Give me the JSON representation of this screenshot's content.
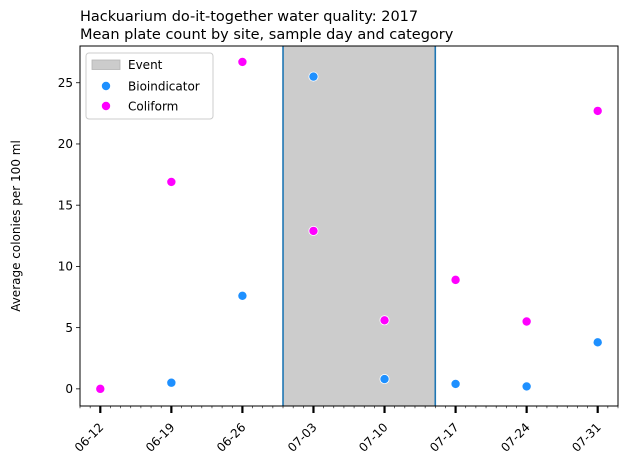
{
  "chart_data": {
    "type": "scatter",
    "title_lines": [
      "Hackuarium do-it-together water quality: 2017",
      "Mean plate count by site, sample day and category"
    ],
    "xlabel": "",
    "ylabel": "Average colonies per 100 ml",
    "x_ticks": [
      "06-12",
      "06-19",
      "06-26",
      "07-03",
      "07-10",
      "07-17",
      "07-24",
      "07-31"
    ],
    "x_tick_dates": [
      "2017-06-12",
      "2017-06-19",
      "2017-06-26",
      "2017-07-03",
      "2017-07-10",
      "2017-07-17",
      "2017-07-24",
      "2017-07-31"
    ],
    "xlim": [
      "2017-06-10",
      "2017-08-02"
    ],
    "y_ticks": [
      0,
      5,
      10,
      15,
      20,
      25
    ],
    "ylim": [
      -1.4,
      28
    ],
    "grid": false,
    "legend_position": "top-left",
    "event": {
      "name": "Event",
      "start": "2017-06-30",
      "end": "2017-07-15",
      "fill": "#cccccc",
      "edge": "#1f77b4"
    },
    "series": [
      {
        "name": "Bioindicator",
        "color": "#1e90ff",
        "points": [
          {
            "x": "2017-06-12",
            "y": 0.0
          },
          {
            "x": "2017-06-19",
            "y": 0.5
          },
          {
            "x": "2017-06-26",
            "y": 7.6
          },
          {
            "x": "2017-07-03",
            "y": 25.5
          },
          {
            "x": "2017-07-10",
            "y": 0.8
          },
          {
            "x": "2017-07-17",
            "y": 0.4
          },
          {
            "x": "2017-07-24",
            "y": 0.2
          },
          {
            "x": "2017-07-31",
            "y": 3.8
          }
        ]
      },
      {
        "name": "Coliform",
        "color": "#ff00ff",
        "points": [
          {
            "x": "2017-06-12",
            "y": 0.0
          },
          {
            "x": "2017-06-19",
            "y": 16.9
          },
          {
            "x": "2017-06-26",
            "y": 26.7
          },
          {
            "x": "2017-07-03",
            "y": 12.9
          },
          {
            "x": "2017-07-10",
            "y": 5.6
          },
          {
            "x": "2017-07-17",
            "y": 8.9
          },
          {
            "x": "2017-07-24",
            "y": 5.5
          },
          {
            "x": "2017-07-31",
            "y": 22.7
          }
        ]
      }
    ]
  }
}
